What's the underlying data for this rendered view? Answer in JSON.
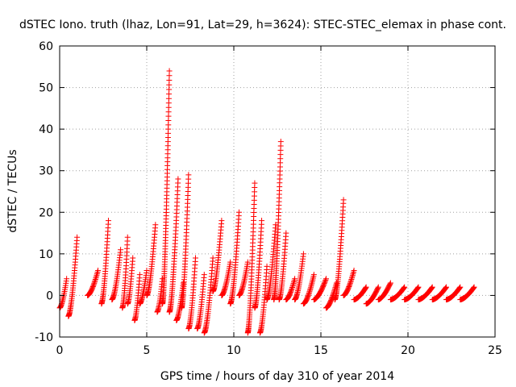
{
  "chart_data": {
    "type": "scatter",
    "title": "dSTEC Iono. truth (lhaz, Lon=91, Lat=29, h=3624): STEC-STEC_elemax in phase cont.",
    "xlabel": "GPS time / hours of day 310 of year 2014",
    "ylabel": "dSTEC  / TECUs",
    "xlim": [
      0,
      25
    ],
    "ylim": [
      -10,
      60
    ],
    "xticks": [
      0,
      5,
      10,
      15,
      20,
      25
    ],
    "yticks": [
      -10,
      0,
      10,
      20,
      30,
      40,
      50,
      60
    ],
    "grid": true,
    "marker": "+",
    "marker_color": "#ff0000",
    "arcs": [
      {
        "x": [
          0.0,
          0.4
        ],
        "y": [
          -3,
          4
        ]
      },
      {
        "x": [
          0.5,
          1.0
        ],
        "y": [
          -5,
          14
        ]
      },
      {
        "x": [
          1.6,
          2.2
        ],
        "y": [
          0,
          6
        ]
      },
      {
        "x": [
          2.4,
          2.8
        ],
        "y": [
          -2,
          18
        ]
      },
      {
        "x": [
          3.0,
          3.5
        ],
        "y": [
          -1,
          11
        ]
      },
      {
        "x": [
          3.6,
          3.9
        ],
        "y": [
          -3,
          14
        ]
      },
      {
        "x": [
          3.9,
          4.2
        ],
        "y": [
          -2,
          9
        ]
      },
      {
        "x": [
          4.3,
          4.6
        ],
        "y": [
          -6,
          5
        ]
      },
      {
        "x": [
          4.6,
          5.0
        ],
        "y": [
          -2,
          6
        ]
      },
      {
        "x": [
          5.0,
          5.5
        ],
        "y": [
          0,
          17
        ]
      },
      {
        "x": [
          5.6,
          5.9
        ],
        "y": [
          -4,
          4
        ]
      },
      {
        "x": [
          5.9,
          6.3
        ],
        "y": [
          -2,
          54
        ]
      },
      {
        "x": [
          6.3,
          6.8
        ],
        "y": [
          -4,
          28
        ]
      },
      {
        "x": [
          6.7,
          7.1
        ],
        "y": [
          -6,
          3
        ]
      },
      {
        "x": [
          7.0,
          7.4
        ],
        "y": [
          -3,
          29
        ]
      },
      {
        "x": [
          7.4,
          7.8
        ],
        "y": [
          -8,
          9
        ]
      },
      {
        "x": [
          7.9,
          8.3
        ],
        "y": [
          -8,
          5
        ]
      },
      {
        "x": [
          8.3,
          8.8
        ],
        "y": [
          -9,
          9
        ]
      },
      {
        "x": [
          8.8,
          9.3
        ],
        "y": [
          1,
          18
        ]
      },
      {
        "x": [
          9.3,
          9.8
        ],
        "y": [
          0,
          8
        ]
      },
      {
        "x": [
          9.8,
          10.3
        ],
        "y": [
          -2,
          20
        ]
      },
      {
        "x": [
          10.3,
          10.8
        ],
        "y": [
          0,
          8
        ]
      },
      {
        "x": [
          10.8,
          11.2
        ],
        "y": [
          -9,
          27
        ]
      },
      {
        "x": [
          11.2,
          11.6
        ],
        "y": [
          -3,
          18
        ]
      },
      {
        "x": [
          11.5,
          11.9
        ],
        "y": [
          -9,
          7
        ]
      },
      {
        "x": [
          11.9,
          12.4
        ],
        "y": [
          -1,
          17
        ]
      },
      {
        "x": [
          12.3,
          12.7
        ],
        "y": [
          -1,
          37
        ]
      },
      {
        "x": [
          12.6,
          13.0
        ],
        "y": [
          -1,
          15
        ]
      },
      {
        "x": [
          13.0,
          13.5
        ],
        "y": [
          -1,
          4
        ]
      },
      {
        "x": [
          13.5,
          14.0
        ],
        "y": [
          -1,
          10
        ]
      },
      {
        "x": [
          14.0,
          14.6
        ],
        "y": [
          -2,
          5
        ]
      },
      {
        "x": [
          14.6,
          15.3
        ],
        "y": [
          -1,
          4
        ]
      },
      {
        "x": [
          15.3,
          15.9
        ],
        "y": [
          -3,
          3
        ]
      },
      {
        "x": [
          15.8,
          16.3
        ],
        "y": [
          -1,
          23
        ]
      },
      {
        "x": [
          16.3,
          16.9
        ],
        "y": [
          0,
          6
        ]
      },
      {
        "x": [
          16.9,
          17.6
        ],
        "y": [
          -1,
          2
        ]
      },
      {
        "x": [
          17.6,
          18.3
        ],
        "y": [
          -2,
          2
        ]
      },
      {
        "x": [
          18.3,
          19.0
        ],
        "y": [
          -1,
          3
        ]
      },
      {
        "x": [
          19.0,
          19.8
        ],
        "y": [
          -1,
          2
        ]
      },
      {
        "x": [
          19.8,
          20.6
        ],
        "y": [
          -1,
          2
        ]
      },
      {
        "x": [
          20.6,
          21.4
        ],
        "y": [
          -1,
          2
        ]
      },
      {
        "x": [
          21.4,
          22.2
        ],
        "y": [
          -1,
          2
        ]
      },
      {
        "x": [
          22.2,
          23.0
        ],
        "y": [
          -1,
          2
        ]
      },
      {
        "x": [
          23.0,
          23.8
        ],
        "y": [
          -1,
          2
        ]
      }
    ]
  }
}
